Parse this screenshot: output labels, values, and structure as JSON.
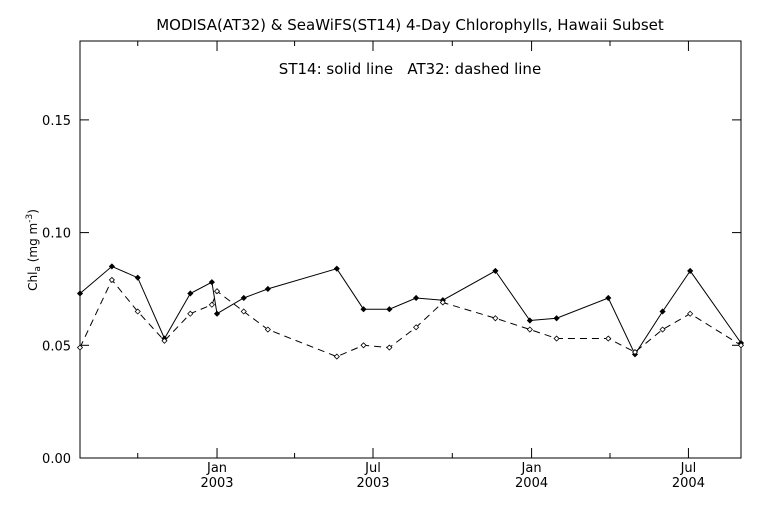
{
  "chart_data": {
    "type": "line",
    "title": "MODISA(AT32) & SeaWiFS(ST14) 4-Day Chlorophylls, Hawaii Subset",
    "annotation": "ST14: solid line   AT32: dashed line",
    "ylabel": {
      "base": "Chl",
      "sub": "a",
      "unit": " (mg m",
      "sup": "-3",
      "close": ")"
    },
    "ylim": [
      0.0,
      0.185
    ],
    "yticks": [
      "0.00",
      "0.05",
      "0.10",
      "0.15"
    ],
    "xlim": [
      "2002-07-26",
      "2004-08-31"
    ],
    "xticks": [
      {
        "date": "2003-01-01",
        "month": "Jan",
        "year": "2003"
      },
      {
        "date": "2003-07-01",
        "month": "Jul",
        "year": "2003"
      },
      {
        "date": "2004-01-01",
        "month": "Jan",
        "year": "2004"
      },
      {
        "date": "2004-07-01",
        "month": "Jul",
        "year": "2004"
      }
    ],
    "minor_ticks": [
      "2002-10-01",
      "2003-04-01",
      "2003-10-01",
      "2004-04-01"
    ],
    "grid": false,
    "series": [
      {
        "name": "ST14",
        "style": "solid",
        "x": [
          "2002-07-26",
          "2002-09-01",
          "2002-10-01",
          "2002-11-01",
          "2002-12-01",
          "2002-12-26",
          "2003-01-01",
          "2003-02-01",
          "2003-03-01",
          "2003-05-20",
          "2003-06-20",
          "2003-07-20",
          "2003-08-20",
          "2003-09-20",
          "2003-11-20",
          "2003-12-30",
          "2004-01-30",
          "2004-03-30",
          "2004-04-30",
          "2004-06-01",
          "2004-07-03",
          "2004-08-31"
        ],
        "values": [
          0.073,
          0.085,
          0.08,
          0.053,
          0.073,
          0.078,
          0.064,
          0.071,
          0.075,
          0.084,
          0.066,
          0.066,
          0.071,
          0.07,
          0.083,
          0.061,
          0.062,
          0.071,
          0.046,
          0.065,
          0.083,
          0.051
        ]
      },
      {
        "name": "AT32",
        "style": "dashed",
        "x": [
          "2002-07-26",
          "2002-09-01",
          "2002-10-01",
          "2002-11-01",
          "2002-12-01",
          "2002-12-26",
          "2003-01-01",
          "2003-02-01",
          "2003-03-01",
          "2003-05-20",
          "2003-06-20",
          "2003-07-20",
          "2003-08-20",
          "2003-09-20",
          "2003-11-20",
          "2003-12-30",
          "2004-01-30",
          "2004-03-30",
          "2004-04-30",
          "2004-06-01",
          "2004-07-03",
          "2004-08-31"
        ],
        "values": [
          0.049,
          0.079,
          0.065,
          0.052,
          0.064,
          0.068,
          0.074,
          0.065,
          0.057,
          0.045,
          0.05,
          0.049,
          0.058,
          0.069,
          0.062,
          0.057,
          0.053,
          0.053,
          0.047,
          0.057,
          0.064,
          0.05
        ]
      }
    ]
  }
}
